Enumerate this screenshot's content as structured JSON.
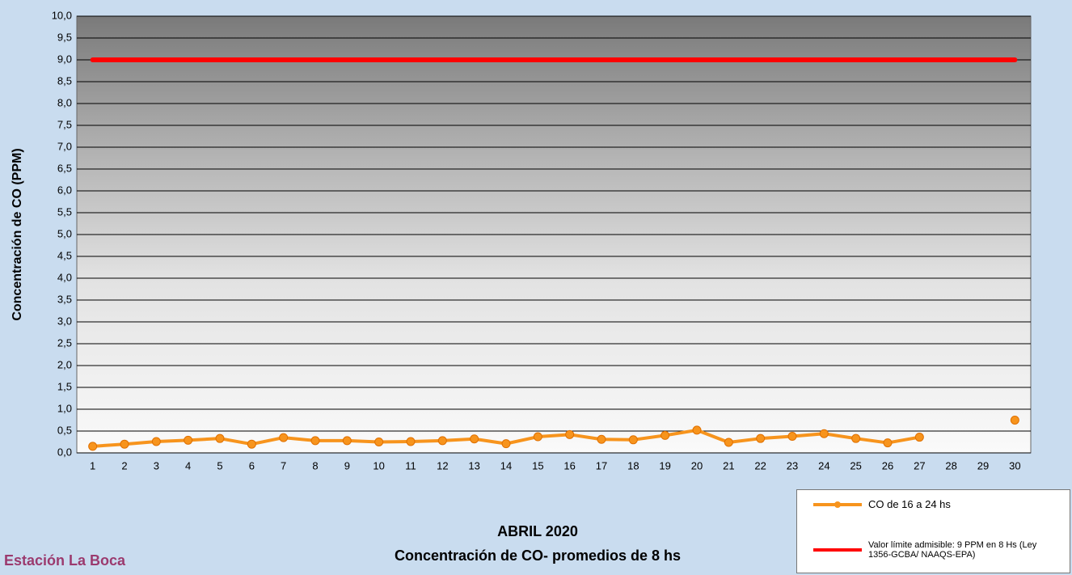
{
  "chart_data": {
    "type": "line",
    "title": "ABRIL 2020",
    "subtitle": "Concentración de CO- promedios de 8 hs",
    "annotation": "Estación La Boca",
    "y_label": "Concentración de CO (PPM)",
    "categories": [
      "1",
      "2",
      "3",
      "4",
      "5",
      "6",
      "7",
      "8",
      "9",
      "10",
      "11",
      "12",
      "13",
      "14",
      "15",
      "16",
      "17",
      "18",
      "19",
      "20",
      "21",
      "22",
      "23",
      "24",
      "25",
      "26",
      "27",
      "28",
      "29",
      "30"
    ],
    "series": [
      {
        "name": "CO de 16 a 24 hs",
        "color": "#f7941d",
        "marker": true,
        "values": [
          0.15,
          0.2,
          0.26,
          0.29,
          0.33,
          0.2,
          0.35,
          0.28,
          0.28,
          0.25,
          0.26,
          0.28,
          0.32,
          0.21,
          0.37,
          0.42,
          0.31,
          0.3,
          0.4,
          0.52,
          0.24,
          0.33,
          0.38,
          0.44,
          0.33,
          0.23,
          0.36,
          null,
          null,
          0.75
        ]
      },
      {
        "name": "Valor límite admisible: 9 PPM en 8 Hs (Ley 1356-GCBA/ NAAQS-EPA)",
        "color": "#ff0000",
        "marker": false,
        "values": [
          9,
          9,
          9,
          9,
          9,
          9,
          9,
          9,
          9,
          9,
          9,
          9,
          9,
          9,
          9,
          9,
          9,
          9,
          9,
          9,
          9,
          9,
          9,
          9,
          9,
          9,
          9,
          9,
          9,
          9
        ]
      }
    ],
    "ylim": [
      0,
      10
    ],
    "yticks": [
      {
        "value": 0,
        "label": "0,0"
      },
      {
        "value": 0.5,
        "label": "0,5"
      },
      {
        "value": 1,
        "label": "1,0"
      },
      {
        "value": 1.5,
        "label": "1,5"
      },
      {
        "value": 2,
        "label": "2,0"
      },
      {
        "value": 2.5,
        "label": "2,5"
      },
      {
        "value": 3,
        "label": "3,0"
      },
      {
        "value": 3.5,
        "label": "3,5"
      },
      {
        "value": 4,
        "label": "4,0"
      },
      {
        "value": 4.5,
        "label": "4,5"
      },
      {
        "value": 5,
        "label": "5,0"
      },
      {
        "value": 5.5,
        "label": "5,5"
      },
      {
        "value": 6,
        "label": "6,0"
      },
      {
        "value": 6.5,
        "label": "6,5"
      },
      {
        "value": 7,
        "label": "7,0"
      },
      {
        "value": 7.5,
        "label": "7,5"
      },
      {
        "value": 8,
        "label": "8,0"
      },
      {
        "value": 8.5,
        "label": "8,5"
      },
      {
        "value": 9,
        "label": "9,0"
      },
      {
        "value": 9.5,
        "label": "9,5"
      },
      {
        "value": 10,
        "label": "10,0"
      }
    ],
    "grid": true
  }
}
